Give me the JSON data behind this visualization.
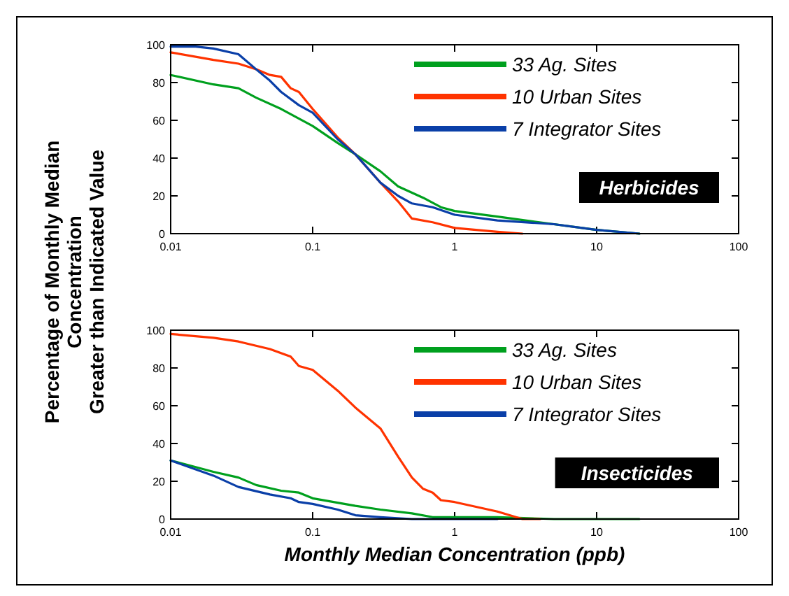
{
  "chart_data": [
    {
      "type": "line",
      "ylabel": "Percentage of Monthly Median\nConcentration\nGreater than Indicated Value",
      "log": "x",
      "legend": "top right",
      "xlim": [
        0.01,
        100
      ],
      "xticks": [
        0.01,
        0.1,
        1,
        10,
        100
      ],
      "ylim": [
        0,
        100
      ],
      "yticks": [
        0,
        20,
        40,
        60,
        80,
        100
      ],
      "annotations": [
        "Herbicides"
      ],
      "series": [
        {
          "name": "33 Ag. Sites",
          "color": "#00a01e",
          "x": [
            0.01,
            0.02,
            0.03,
            0.04,
            0.06,
            0.1,
            0.15,
            0.2,
            0.3,
            0.4,
            0.6,
            0.8,
            1,
            2,
            5,
            10,
            20
          ],
          "values": [
            84,
            79,
            77,
            72,
            66,
            57,
            48,
            42,
            33,
            25,
            19,
            14,
            12,
            9,
            5,
            2,
            0
          ]
        },
        {
          "name": "10 Urban Sites",
          "color": "#ff3300",
          "x": [
            0.01,
            0.02,
            0.03,
            0.04,
            0.05,
            0.06,
            0.07,
            0.08,
            0.1,
            0.15,
            0.2,
            0.3,
            0.4,
            0.5,
            0.7,
            1,
            2,
            3
          ],
          "values": [
            96,
            92,
            90,
            87,
            84,
            83,
            77,
            75,
            66,
            51,
            42,
            27,
            17,
            8,
            6,
            3,
            1,
            0
          ]
        },
        {
          "name": "7 Integrator Sites",
          "color": "#0a3fa8",
          "x": [
            0.01,
            0.015,
            0.02,
            0.03,
            0.04,
            0.05,
            0.06,
            0.08,
            0.1,
            0.15,
            0.2,
            0.3,
            0.4,
            0.5,
            0.7,
            1,
            2,
            5,
            10,
            20
          ],
          "values": [
            99,
            99,
            98,
            95,
            87,
            81,
            75,
            68,
            64,
            50,
            42,
            27,
            20,
            16,
            14,
            10,
            7,
            5,
            2,
            0
          ]
        }
      ]
    },
    {
      "type": "line",
      "xlabel": "Monthly Median Concentration (ppb)",
      "log": "x",
      "legend": "top right",
      "xlim": [
        0.01,
        100
      ],
      "xticks": [
        0.01,
        0.1,
        1,
        10,
        100
      ],
      "ylim": [
        0,
        100
      ],
      "yticks": [
        0,
        20,
        40,
        60,
        80,
        100
      ],
      "annotations": [
        "Insecticides"
      ],
      "series": [
        {
          "name": "33 Ag. Sites",
          "color": "#00a01e",
          "x": [
            0.01,
            0.02,
            0.03,
            0.04,
            0.06,
            0.08,
            0.1,
            0.2,
            0.3,
            0.5,
            0.7,
            1,
            2,
            5,
            20
          ],
          "values": [
            31,
            25,
            22,
            18,
            15,
            14,
            11,
            7,
            5,
            3,
            1,
            1,
            1,
            0,
            0
          ]
        },
        {
          "name": "10 Urban Sites",
          "color": "#ff3300",
          "x": [
            0.01,
            0.02,
            0.03,
            0.05,
            0.07,
            0.08,
            0.1,
            0.15,
            0.2,
            0.3,
            0.4,
            0.5,
            0.6,
            0.7,
            0.8,
            1,
            2,
            3,
            4
          ],
          "values": [
            98,
            96,
            94,
            90,
            86,
            81,
            79,
            68,
            59,
            48,
            33,
            22,
            16,
            14,
            10,
            9,
            4,
            0,
            0
          ]
        },
        {
          "name": "7 Integrator Sites",
          "color": "#0a3fa8",
          "x": [
            0.01,
            0.02,
            0.03,
            0.05,
            0.07,
            0.08,
            0.1,
            0.15,
            0.2,
            0.3,
            0.5,
            2
          ],
          "values": [
            31,
            23,
            17,
            13,
            11,
            9,
            8,
            5,
            2,
            1,
            0,
            0
          ]
        }
      ]
    }
  ]
}
